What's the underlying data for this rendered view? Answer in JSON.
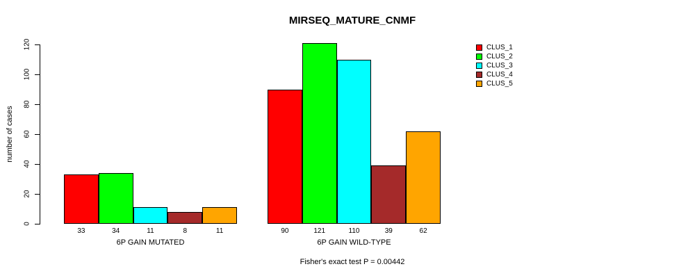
{
  "page": {
    "background": "#FFFFFF"
  },
  "chart_data": {
    "type": "bar",
    "title": "MIRSEQ_MATURE_CNMF",
    "ylabel": "number of cases",
    "xlabel": "",
    "annotation": "Fisher's exact test P = 0.00442",
    "ylim": [
      0,
      120
    ],
    "yticks": [
      0,
      20,
      40,
      60,
      80,
      100,
      120
    ],
    "categories": [
      "6P GAIN MUTATED",
      "6P GAIN WILD-TYPE"
    ],
    "series": [
      {
        "name": "CLUS_1",
        "color": "#FF0000",
        "values": [
          33,
          90
        ]
      },
      {
        "name": "CLUS_2",
        "color": "#00FF00",
        "values": [
          34,
          121
        ]
      },
      {
        "name": "CLUS_3",
        "color": "#00FFFF",
        "values": [
          11,
          110
        ]
      },
      {
        "name": "CLUS_4",
        "color": "#A52A2A",
        "values": [
          8,
          39
        ]
      },
      {
        "name": "CLUS_5",
        "color": "#FFA500",
        "values": [
          11,
          62
        ]
      }
    ],
    "bar_value_labels_shown": true,
    "legend_position": "right-of-plot-top",
    "grid": false,
    "axis_color": "#000000",
    "text_color": "#000000"
  }
}
